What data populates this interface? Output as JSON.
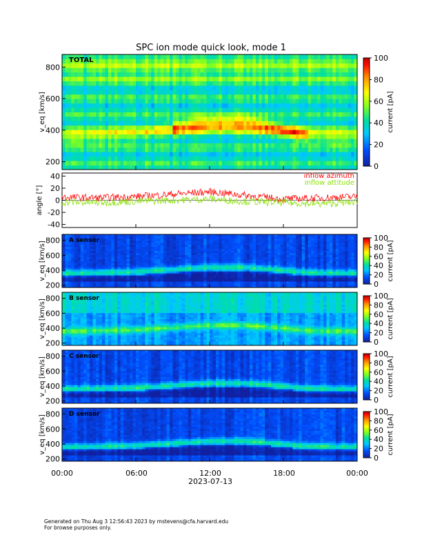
{
  "title": "SPC ion mode quick look, mode 1",
  "date_label": "2023-07-13",
  "x_ticks": [
    "00:00",
    "06:00",
    "12:00",
    "18:00",
    "00:00"
  ],
  "footer": {
    "line1": "Generated on Thu Aug  3 12:56:43 2023 by mstevens@cfa.harvard.edu",
    "line2": "For browse purposes only."
  },
  "colors": {
    "inflow_azimuth": "#ff0000",
    "inflow_altitude": "#88e000"
  },
  "chart_data": [
    {
      "type": "heatmap",
      "panel": "total",
      "label": "TOTAL",
      "ylabel": "v_eq [km/s]",
      "y_ticks": [
        200,
        400,
        600,
        800
      ],
      "ylim": [
        150,
        880
      ],
      "colorbar_label": "current [pA]",
      "colorbar_ticks": [
        0,
        20,
        40,
        60,
        80,
        100
      ],
      "clim": [
        0,
        100
      ],
      "ridge_kms": [
        {
          "hour": 0,
          "v": 360
        },
        {
          "hour": 6,
          "v": 380
        },
        {
          "hour": 9,
          "v": 410
        },
        {
          "hour": 12,
          "v": 440
        },
        {
          "hour": 15,
          "v": 440
        },
        {
          "hour": 18,
          "v": 400
        },
        {
          "hour": 20,
          "v": 370
        },
        {
          "hour": 24,
          "v": 360
        }
      ]
    },
    {
      "type": "line",
      "panel": "angle",
      "ylabel": "angle [°]",
      "y_ticks": [
        -40,
        -20,
        0,
        20,
        40
      ],
      "ylim": [
        -45,
        45
      ],
      "series": [
        {
          "name": "inflow azimuth",
          "hours": [
            0,
            3,
            6,
            9,
            12,
            15,
            18,
            21,
            24
          ],
          "values": [
            5,
            4,
            6,
            10,
            14,
            8,
            2,
            4,
            6
          ]
        },
        {
          "name": "inflow attitude",
          "hours": [
            0,
            3,
            6,
            9,
            12,
            15,
            18,
            21,
            24
          ],
          "values": [
            -3,
            -4,
            -2,
            0,
            2,
            -2,
            -4,
            -6,
            -3
          ]
        }
      ]
    },
    {
      "type": "heatmap",
      "panel": "a",
      "label": "A sensor",
      "ylabel": "v_eq [km/s]",
      "y_ticks": [
        200,
        400,
        600,
        800
      ],
      "ylim": [
        170,
        880
      ],
      "colorbar_label": "current [pA]",
      "colorbar_ticks": [
        0,
        20,
        40,
        60,
        80,
        100
      ],
      "clim": [
        0,
        100
      ]
    },
    {
      "type": "heatmap",
      "panel": "b",
      "label": "B sensor",
      "ylabel": "v_eq [km/s]",
      "y_ticks": [
        200,
        400,
        600,
        800
      ],
      "ylim": [
        170,
        880
      ],
      "colorbar_label": "current [pA]",
      "colorbar_ticks": [
        0,
        20,
        40,
        60,
        80,
        100
      ],
      "clim": [
        0,
        100
      ]
    },
    {
      "type": "heatmap",
      "panel": "c",
      "label": "C sensor",
      "ylabel": "v_eq [km/s]",
      "y_ticks": [
        200,
        400,
        600,
        800
      ],
      "ylim": [
        170,
        880
      ],
      "colorbar_label": "current [pA]",
      "colorbar_ticks": [
        0,
        20,
        40,
        60,
        80,
        100
      ],
      "clim": [
        0,
        100
      ]
    },
    {
      "type": "heatmap",
      "panel": "d",
      "label": "D sensor",
      "ylabel": "v_eq [km/s]",
      "y_ticks": [
        200,
        400,
        600,
        800
      ],
      "ylim": [
        170,
        880
      ],
      "colorbar_label": "current [pA]",
      "colorbar_ticks": [
        0,
        20,
        40,
        60,
        80,
        100
      ],
      "clim": [
        0,
        100
      ]
    }
  ]
}
